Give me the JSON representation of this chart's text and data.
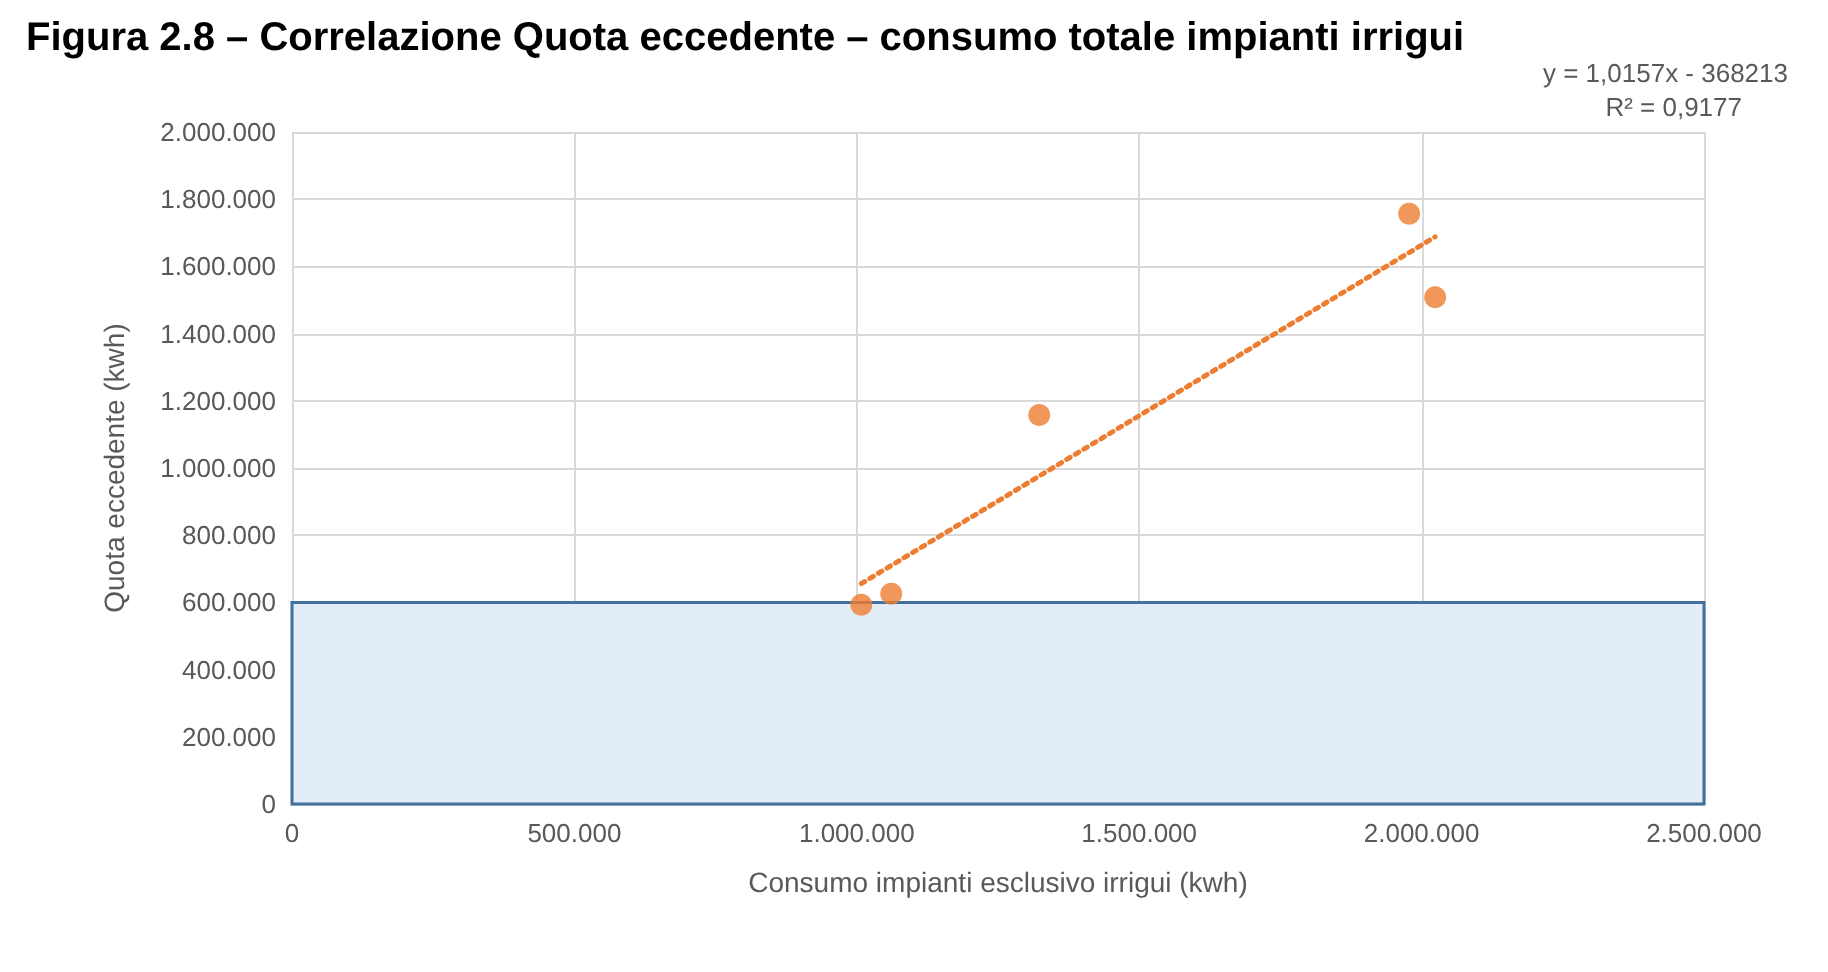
{
  "chart_data": {
    "type": "scatter",
    "title": "Figura 2.8 – Correlazione Quota eccedente – consumo totale impianti irrigui",
    "xlabel": "Consumo impianti esclusivo irrigui (kwh)",
    "ylabel": "Quota eccedente (kwh)",
    "annotations": [
      "y = 1,0157x - 368213",
      "R² = 0,9177"
    ],
    "series": [
      {
        "color": "#ed7d31",
        "marker": "circle",
        "x": [
          1008000,
          1061000,
          1323000,
          1978000,
          2024000
        ],
        "values": [
          593000,
          626000,
          1158000,
          1757000,
          1508000
        ]
      },
      {
        "type": "line",
        "color": "#ed7d31",
        "marker": "none",
        "line_style": "dotted",
        "x": [
          1008000,
          2024000
        ],
        "values": [
          656000,
          1688000
        ]
      }
    ],
    "bands": [
      {
        "axis": "y",
        "from": 0,
        "to": 600000,
        "color": "#e3edf7"
      }
    ],
    "xlim": [
      0,
      2500000
    ],
    "xticks": [
      {
        "value": 0,
        "label": "0"
      },
      {
        "value": 500000,
        "label": "500.000"
      },
      {
        "value": 1000000,
        "label": "1.000.000"
      },
      {
        "value": 1500000,
        "label": "1.500.000"
      },
      {
        "value": 2000000,
        "label": "2.000.000"
      },
      {
        "value": 2500000,
        "label": "2.500.000"
      }
    ],
    "ylim": [
      0,
      2000000
    ],
    "yticks": [
      {
        "value": 0,
        "label": "0"
      },
      {
        "value": 200000,
        "label": "200.000"
      },
      {
        "value": 400000,
        "label": "400.000"
      },
      {
        "value": 600000,
        "label": "600.000"
      },
      {
        "value": 800000,
        "label": "800.000"
      },
      {
        "value": 1000000,
        "label": "1.000.000"
      },
      {
        "value": 1200000,
        "label": "1.200.000"
      },
      {
        "value": 1400000,
        "label": "1.400.000"
      },
      {
        "value": 1600000,
        "label": "1.600.000"
      },
      {
        "value": 1800000,
        "label": "1.800.000"
      },
      {
        "value": 2000000,
        "label": "2.000.000"
      }
    ],
    "grid": true
  }
}
